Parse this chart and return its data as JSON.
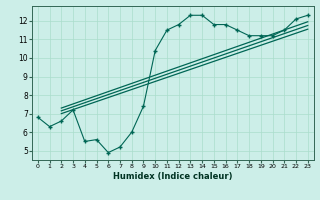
{
  "xlabel": "Humidex (Indice chaleur)",
  "bg_color": "#cceee8",
  "grid_color": "#aaddcc",
  "line_color": "#006655",
  "xlim": [
    -0.5,
    23.5
  ],
  "ylim": [
    4.5,
    12.8
  ],
  "xtick_labels": [
    "0",
    "1",
    "2",
    "3",
    "4",
    "5",
    "6",
    "7",
    "8",
    "9",
    "10",
    "11",
    "12",
    "13",
    "14",
    "15",
    "16",
    "17",
    "18",
    "19",
    "20",
    "21",
    "22",
    "23"
  ],
  "ytick_values": [
    5,
    6,
    7,
    8,
    9,
    10,
    11,
    12
  ],
  "main_x": [
    0,
    1,
    2,
    3,
    4,
    5,
    6,
    7,
    8,
    9,
    10,
    11,
    12,
    13,
    14,
    15,
    16,
    17,
    18,
    19,
    20,
    21,
    22,
    23
  ],
  "main_y": [
    6.8,
    6.3,
    6.6,
    7.2,
    5.5,
    5.6,
    4.9,
    5.2,
    6.0,
    7.4,
    10.4,
    11.5,
    11.8,
    12.3,
    12.3,
    11.8,
    11.8,
    11.5,
    11.2,
    11.2,
    11.2,
    11.5,
    12.1,
    12.3
  ],
  "line1_x": [
    2,
    23
  ],
  "line1_y": [
    7.0,
    11.55
  ],
  "line2_x": [
    2,
    23
  ],
  "line2_y": [
    7.15,
    11.75
  ],
  "line3_x": [
    2,
    23
  ],
  "line3_y": [
    7.3,
    11.95
  ],
  "figsize": [
    3.2,
    2.0
  ],
  "dpi": 100
}
